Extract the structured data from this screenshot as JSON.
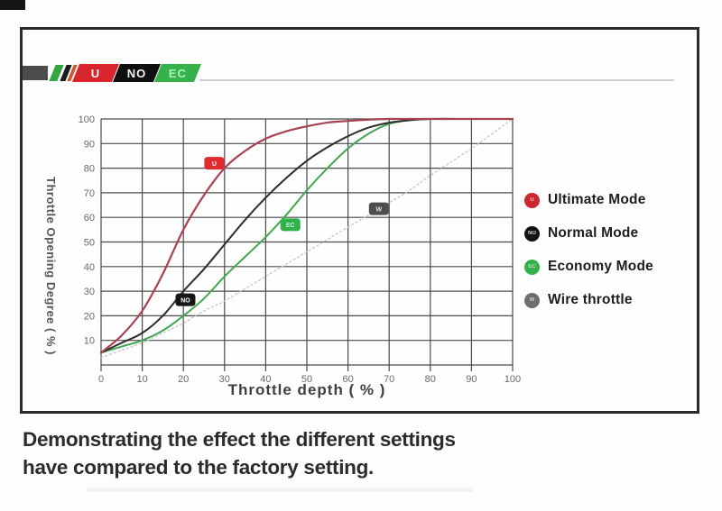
{
  "logo": {
    "bar_color": "#4c4c4c",
    "stripe_colors": [
      "#33a63e",
      "#1c1c1c",
      "#d2542e"
    ],
    "segments": [
      {
        "label": "U",
        "bg": "#d8262c",
        "fg": "#f5f5f5"
      },
      {
        "label": "NO",
        "bg": "#101010",
        "fg": "#f5f5f5"
      },
      {
        "label": "EC",
        "bg": "#36b14b",
        "fg": "#aef0bc"
      }
    ]
  },
  "chart_data": {
    "type": "line",
    "title": "",
    "xlabel": "Throttle depth ( % )",
    "ylabel": "Throttle Opening Degree ( % )",
    "xlim": [
      0,
      100
    ],
    "ylim": [
      0,
      100
    ],
    "grid": true,
    "legend_position": "right",
    "xticks": [
      0,
      10,
      20,
      30,
      40,
      50,
      60,
      70,
      80,
      90,
      100
    ],
    "yticks": [
      10,
      20,
      30,
      40,
      50,
      60,
      70,
      80,
      90,
      100
    ],
    "x": [
      0,
      5,
      10,
      15,
      20,
      25,
      30,
      35,
      40,
      45,
      50,
      55,
      60,
      65,
      70,
      75,
      80,
      90,
      100
    ],
    "series": [
      {
        "name": "Ultimate Mode",
        "color": "#a84250",
        "style": "solid",
        "width": 2.2,
        "values": [
          5,
          12,
          22,
          37,
          55,
          69,
          80,
          87,
          92,
          95,
          97,
          98.5,
          99.2,
          99.7,
          100,
          100,
          100,
          100,
          100
        ]
      },
      {
        "name": "Normal Mode",
        "color": "#2d2d2d",
        "style": "solid",
        "width": 2,
        "values": [
          5,
          9,
          13,
          20,
          30,
          39,
          49,
          59,
          68,
          76,
          83,
          88.5,
          93,
          96.5,
          98.5,
          99.5,
          100,
          100,
          100
        ]
      },
      {
        "name": "Economy Mode",
        "color": "#44a553",
        "style": "solid",
        "width": 2,
        "values": [
          5,
          7.5,
          10,
          14,
          20,
          27,
          36,
          44,
          52,
          61,
          71,
          80,
          88,
          94,
          98,
          99.5,
          100,
          100,
          100
        ]
      },
      {
        "name": "Wire throttle",
        "color": "#c6c6c6",
        "style": "dotted",
        "width": 1.3,
        "values": [
          3,
          6,
          9,
          13,
          17,
          22,
          26,
          31,
          36,
          41,
          46,
          51,
          56,
          61,
          66,
          71,
          77,
          88,
          100
        ]
      }
    ],
    "badges": [
      {
        "label": "U",
        "x": 27.5,
        "y": 82,
        "bg": "#e02a2e",
        "fg": "#ffffff"
      },
      {
        "label": "NO",
        "x": 20.5,
        "y": 26.5,
        "bg": "#161616",
        "fg": "#ffffff"
      },
      {
        "label": "EC",
        "x": 46,
        "y": 57,
        "bg": "#2fb14c",
        "fg": "#c9f7d2"
      },
      {
        "label": "W",
        "x": 67.5,
        "y": 63.5,
        "bg": "#4e4e4e",
        "fg": "#e0e0e0"
      }
    ],
    "grid_color": "#4a4a4a",
    "tick_color": "#6a6a6a"
  },
  "legend": {
    "items": [
      {
        "label": "Ultimate Mode",
        "letter": "U",
        "color": "#cc2630"
      },
      {
        "label": "Normal Mode",
        "letter": "NO",
        "color": "#111111"
      },
      {
        "label": "Economy Mode",
        "letter": "EC",
        "color": "#33b04a"
      },
      {
        "label": "Wire throttle",
        "letter": "W",
        "color": "#6e6e6e"
      }
    ]
  },
  "caption": {
    "line1": "Demonstrating the effect the different settings",
    "line2": "have compared to the factory setting."
  }
}
